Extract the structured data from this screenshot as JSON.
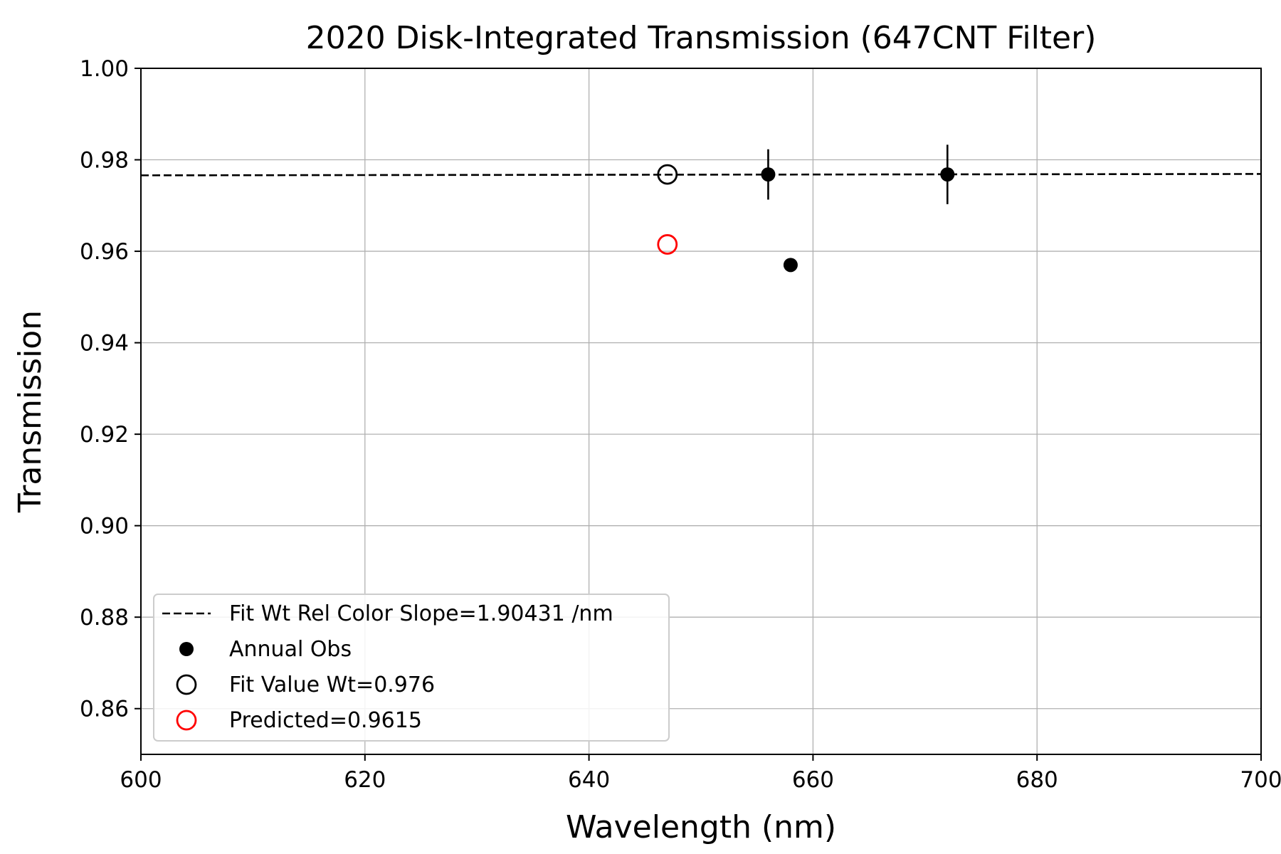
{
  "chart_data": {
    "type": "scatter",
    "title": "2020 Disk-Integrated Transmission (647CNT Filter)",
    "xlabel": "Wavelength (nm)",
    "ylabel": "Transmission",
    "xlim": [
      600,
      700
    ],
    "ylim": [
      0.85,
      1.0
    ],
    "xticks": [
      600,
      620,
      640,
      660,
      680,
      700
    ],
    "xtick_labels": [
      "600",
      "620",
      "640",
      "660",
      "680",
      "700"
    ],
    "yticks": [
      0.86,
      0.88,
      0.9,
      0.92,
      0.94,
      0.96,
      0.98,
      1.0
    ],
    "ytick_labels": [
      "0.86",
      "0.88",
      "0.90",
      "0.92",
      "0.94",
      "0.96",
      "0.98",
      "1.00"
    ],
    "grid": true,
    "legend_position": "lower-left",
    "series": [
      {
        "name": "Fit Wt Rel Color Slope=1.90431 /nm",
        "kind": "line",
        "style": "dashed",
        "color": "#000000",
        "x": [
          600,
          700
        ],
        "y": [
          0.9766,
          0.9769
        ]
      },
      {
        "name": "Annual Obs",
        "kind": "scatter",
        "marker": "filled-circle",
        "color": "#000000",
        "points": [
          {
            "x": 656,
            "y": 0.9768,
            "yerr": 0.0055
          },
          {
            "x": 672,
            "y": 0.9768,
            "yerr": 0.0065
          },
          {
            "x": 658,
            "y": 0.957,
            "yerr": 0
          }
        ]
      },
      {
        "name": "Fit Value Wt=0.976",
        "kind": "scatter",
        "marker": "open-circle",
        "color": "#000000",
        "points": [
          {
            "x": 647,
            "y": 0.9768
          }
        ]
      },
      {
        "name": "Predicted=0.9615",
        "kind": "scatter",
        "marker": "open-circle",
        "color": "#ff0000",
        "points": [
          {
            "x": 647,
            "y": 0.9615
          }
        ]
      }
    ]
  }
}
